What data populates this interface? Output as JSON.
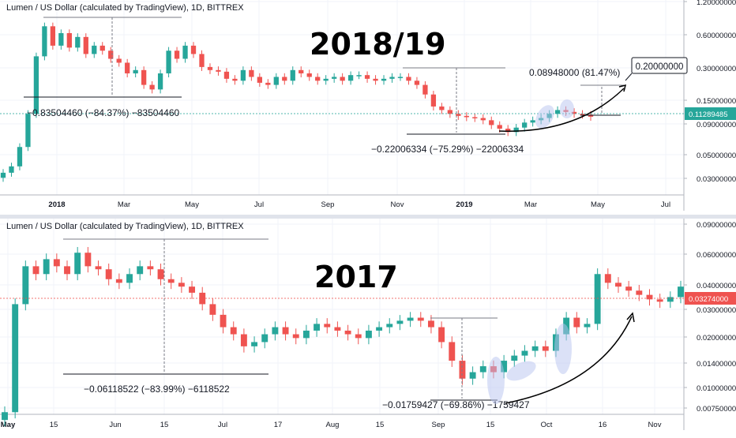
{
  "colors": {
    "up": "#26a69a",
    "down": "#ef5350",
    "grid": "#f0f3fa",
    "axis_bg": "#ffffff",
    "price_tag": "#26a69a",
    "price_tag_bot": "#ef5350",
    "highlight": "#b8c4f0"
  },
  "chart_data": [
    {
      "type": "candlestick",
      "title": "Lumen / US Dollar (calculated by TradingView), 1D, BITTREX",
      "overlay_label": "2018/19",
      "scale": "log",
      "x_ticks": [
        "2018",
        "Mar",
        "May",
        "Jul",
        "Sep",
        "Nov",
        "2019",
        "Mar",
        "May",
        "Jul"
      ],
      "y_ticks": [
        "1.20000000",
        "0.60000000",
        "0.30000000",
        "0.15000000",
        "0.09000000",
        "0.05000000",
        "0.03000000"
      ],
      "last_price": "0.11289485",
      "target_label": "0.20000000",
      "annotations": [
        "−0.83504460 (−84.37%) −83504460",
        "−0.22006334 (−75.29%) −22006334",
        "0.08948000 (81.47%)"
      ],
      "closes": [
        0.035,
        0.04,
        0.06,
        0.12,
        0.4,
        0.75,
        0.5,
        0.65,
        0.48,
        0.6,
        0.42,
        0.5,
        0.45,
        0.38,
        0.35,
        0.28,
        0.3,
        0.22,
        0.2,
        0.28,
        0.45,
        0.38,
        0.5,
        0.42,
        0.32,
        0.3,
        0.29,
        0.25,
        0.24,
        0.3,
        0.26,
        0.23,
        0.22,
        0.26,
        0.24,
        0.3,
        0.28,
        0.26,
        0.24,
        0.25,
        0.26,
        0.24,
        0.27,
        0.27,
        0.25,
        0.24,
        0.25,
        0.26,
        0.26,
        0.24,
        0.22,
        0.18,
        0.14,
        0.13,
        0.12,
        0.115,
        0.112,
        0.11,
        0.105,
        0.095,
        0.088,
        0.082,
        0.09,
        0.1,
        0.105,
        0.11,
        0.12,
        0.13,
        0.125,
        0.12,
        0.118,
        0.113
      ]
    },
    {
      "type": "candlestick",
      "title": "Lumen / US Dollar (calculated by TradingView), 1D, BITTREX",
      "overlay_label": "2017",
      "scale": "log",
      "x_ticks": [
        "May",
        "15",
        "Jun",
        "15",
        "Jul",
        "17",
        "Aug",
        "15",
        "Sep",
        "15",
        "Oct",
        "16",
        "Nov"
      ],
      "y_ticks": [
        "0.09000000",
        "0.06000000",
        "0.04000000",
        "0.03000000",
        "0.02000000",
        "0.01400000",
        "0.01000000",
        "0.00750000"
      ],
      "last_price": "0.03274000",
      "annotations": [
        "−0.06118522 (−83.99%) −6118522",
        "−0.01759427 (−69.86%) −1759427"
      ],
      "closes": [
        0.007,
        0.03,
        0.05,
        0.045,
        0.055,
        0.05,
        0.045,
        0.06,
        0.05,
        0.048,
        0.042,
        0.04,
        0.045,
        0.05,
        0.048,
        0.042,
        0.04,
        0.038,
        0.035,
        0.03,
        0.026,
        0.022,
        0.02,
        0.017,
        0.018,
        0.02,
        0.022,
        0.02,
        0.019,
        0.021,
        0.023,
        0.022,
        0.021,
        0.02,
        0.019,
        0.021,
        0.022,
        0.023,
        0.024,
        0.025,
        0.024,
        0.022,
        0.018,
        0.014,
        0.011,
        0.012,
        0.013,
        0.012,
        0.014,
        0.015,
        0.016,
        0.017,
        0.016,
        0.02,
        0.025,
        0.022,
        0.023,
        0.045,
        0.04,
        0.038,
        0.036,
        0.034,
        0.032,
        0.031,
        0.033,
        0.038
      ]
    }
  ]
}
